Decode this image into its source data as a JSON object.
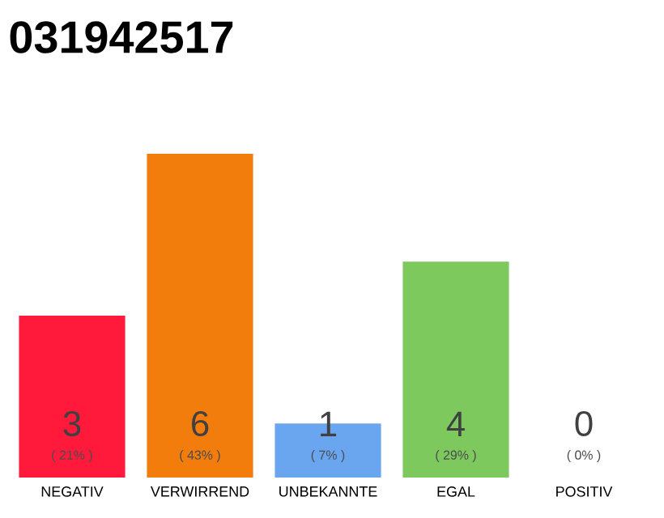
{
  "chart_data": {
    "type": "bar",
    "title": "031942517",
    "categories": [
      "NEGATIV",
      "VERWIRREND",
      "UNBEKANNTE",
      "EGAL",
      "POSITIV"
    ],
    "values": [
      3,
      6,
      1,
      4,
      0
    ],
    "colors": [
      "#ff1a3c",
      "#f27c0c",
      "#6aa5f0",
      "#7dc95e",
      "#7dc95e"
    ],
    "ylim": [
      0,
      6
    ],
    "data_labels": true,
    "tick_labels": "x",
    "annotations": [
      {
        "text": "( 21% )",
        "x": "NEGATIV",
        "y": 0
      },
      {
        "text": "( 43% )",
        "x": "VERWIRREND",
        "y": 0
      },
      {
        "text": "( 7% )",
        "x": "UNBEKANNTE",
        "y": 0
      },
      {
        "text": "( 29% )",
        "x": "EGAL",
        "y": 0
      },
      {
        "text": "( 0% )",
        "x": "POSITIV",
        "y": 0
      }
    ]
  }
}
